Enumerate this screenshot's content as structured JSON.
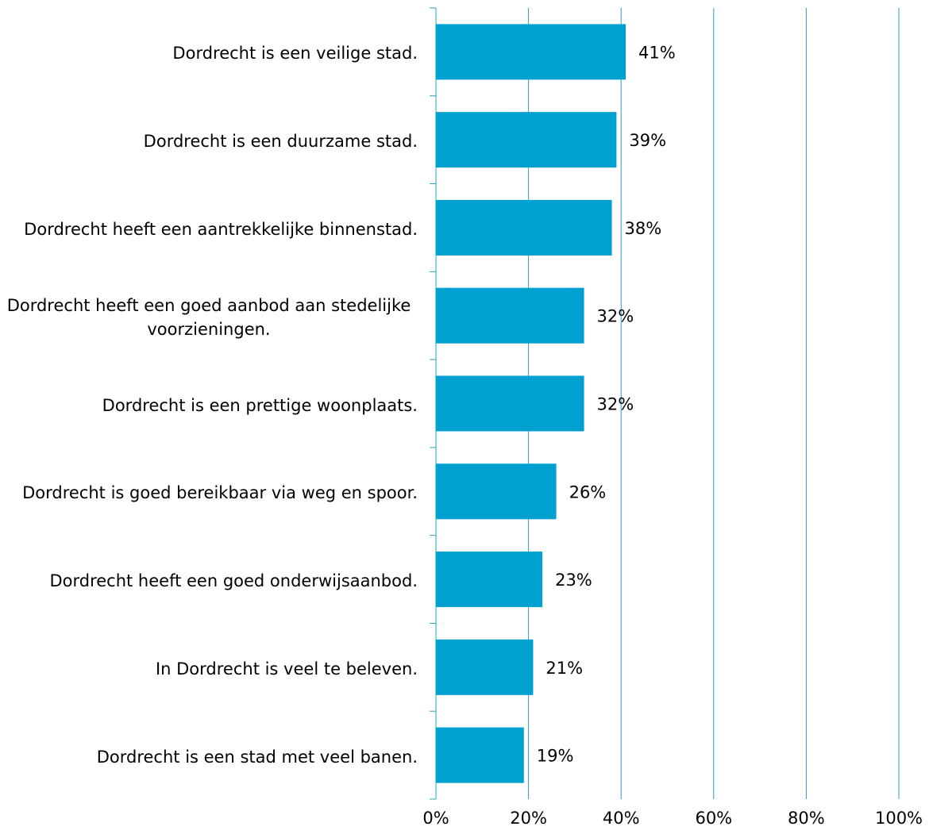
{
  "chart_data": {
    "type": "bar",
    "orientation": "horizontal",
    "categories": [
      "Dordrecht is een veilige stad.",
      "Dordrecht is een duurzame stad.",
      "Dordrecht heeft een aantrekkelijke binnenstad.",
      "Dordrecht heeft een goed aanbod aan stedelijke voorzieningen.",
      "Dordrecht is een prettige woonplaats.",
      "Dordrecht is goed bereikbaar via weg en spoor.",
      "Dordrecht heeft een goed onderwijsaanbod.",
      "In Dordrecht is veel te beleven.",
      "Dordrecht is een stad met veel banen."
    ],
    "values": [
      41,
      39,
      38,
      32,
      32,
      26,
      23,
      21,
      19
    ],
    "value_labels": [
      "41%",
      "39%",
      "38%",
      "32%",
      "32%",
      "26%",
      "23%",
      "21%",
      "19%"
    ],
    "color": "#00a0d0",
    "xlim": [
      0,
      100
    ],
    "xticks": [
      {
        "value": 0,
        "label": "0%"
      },
      {
        "value": 20,
        "label": "20%"
      },
      {
        "value": 40,
        "label": "40%"
      },
      {
        "value": 60,
        "label": "60%"
      },
      {
        "value": 80,
        "label": "80%"
      },
      {
        "value": 100,
        "label": "100%"
      }
    ],
    "grid": true
  }
}
